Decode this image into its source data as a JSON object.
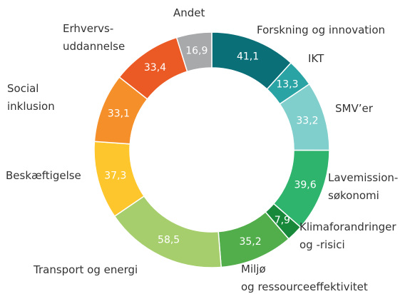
{
  "chart_data": {
    "type": "donut",
    "categories": [
      "Forskning og innovation",
      "IKT",
      "SMV’er",
      "Lavemission-\nsøkonomi",
      "Klimaforandringer\nog -risici",
      "Miljø\nog ressourceeffektivitet",
      "Transport og energi",
      "Beskæftigelse",
      "Social\ninklusion",
      "Erhvervs-\nuddannelse",
      "Andet"
    ],
    "values": [
      41.1,
      13.3,
      33.2,
      39.6,
      7.9,
      35.2,
      58.5,
      37.3,
      33.1,
      33.4,
      16.9
    ],
    "value_labels": [
      "41,1",
      "13,3",
      "33,2",
      "39,6",
      "7,9",
      "35,2",
      "58,5",
      "37,3",
      "33,1",
      "33,4",
      "16,9"
    ],
    "colors": [
      "#0b6f78",
      "#2aa3a4",
      "#80cfcd",
      "#2eb46d",
      "#18893b",
      "#52ad4b",
      "#a6ce6c",
      "#fdc62d",
      "#f58f2a",
      "#eb5a25",
      "#a8a9ab"
    ]
  }
}
